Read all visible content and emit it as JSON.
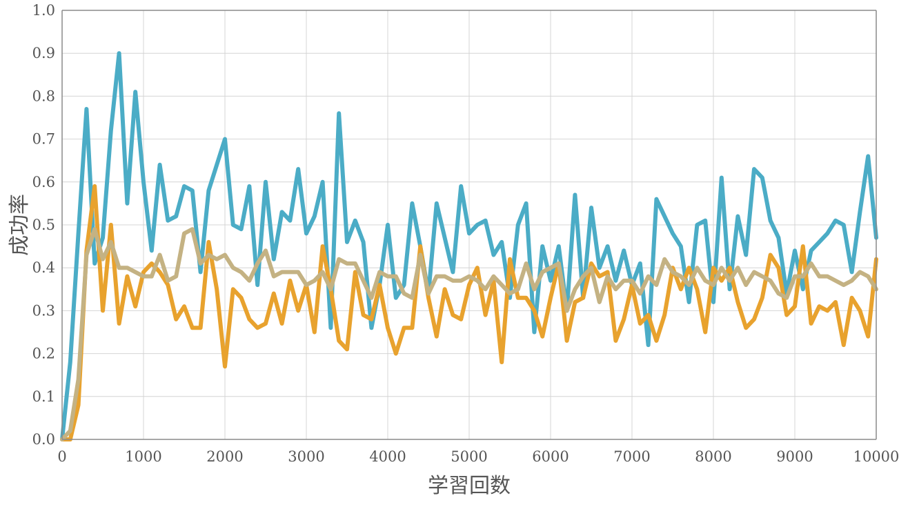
{
  "chart_data": {
    "type": "line",
    "title": "",
    "xlabel": "学習回数",
    "ylabel": "成功率",
    "xlim": [
      0,
      10000
    ],
    "ylim": [
      0,
      1.0
    ],
    "x_ticks": [
      0,
      1000,
      2000,
      3000,
      4000,
      5000,
      6000,
      7000,
      8000,
      9000,
      10000
    ],
    "y_ticks": [
      0.0,
      0.1,
      0.2,
      0.3,
      0.4,
      0.5,
      0.6,
      0.7,
      0.8,
      0.9,
      1.0
    ],
    "y_tick_labels": [
      "0.0",
      "0.1",
      "0.2",
      "0.3",
      "0.4",
      "0.5",
      "0.6",
      "0.7",
      "0.8",
      "0.9",
      "1.0"
    ],
    "grid": true,
    "legend": "none",
    "series": [
      {
        "color": "#4bacc6",
        "x": [
          0,
          100,
          200,
          300,
          400,
          500,
          600,
          700,
          800,
          900,
          1000,
          1100,
          1200,
          1300,
          1400,
          1500,
          1600,
          1700,
          1800,
          1900,
          2000,
          2100,
          2200,
          2300,
          2400,
          2500,
          2600,
          2700,
          2800,
          2900,
          3000,
          3100,
          3200,
          3300,
          3400,
          3500,
          3600,
          3700,
          3800,
          3900,
          4000,
          4100,
          4200,
          4300,
          4400,
          4500,
          4600,
          4700,
          4800,
          4900,
          5000,
          5100,
          5200,
          5300,
          5400,
          5500,
          5600,
          5700,
          5800,
          5900,
          6000,
          6100,
          6200,
          6300,
          6400,
          6500,
          6600,
          6700,
          6800,
          6900,
          7000,
          7100,
          7200,
          7300,
          7400,
          7500,
          7600,
          7700,
          7800,
          7900,
          8000,
          8100,
          8200,
          8300,
          8400,
          8500,
          8600,
          8700,
          8800,
          8900,
          9000,
          9100,
          9200,
          9300,
          9400,
          9500,
          9600,
          9700,
          9800,
          9900,
          10000
        ],
        "values": [
          0.0,
          0.18,
          0.48,
          0.77,
          0.41,
          0.47,
          0.72,
          0.9,
          0.55,
          0.81,
          0.6,
          0.44,
          0.64,
          0.51,
          0.52,
          0.59,
          0.58,
          0.39,
          0.58,
          0.64,
          0.7,
          0.5,
          0.49,
          0.59,
          0.36,
          0.6,
          0.42,
          0.53,
          0.51,
          0.63,
          0.48,
          0.52,
          0.6,
          0.26,
          0.76,
          0.46,
          0.51,
          0.46,
          0.26,
          0.36,
          0.5,
          0.33,
          0.36,
          0.55,
          0.45,
          0.34,
          0.55,
          0.47,
          0.39,
          0.59,
          0.48,
          0.5,
          0.51,
          0.43,
          0.46,
          0.33,
          0.5,
          0.55,
          0.25,
          0.45,
          0.37,
          0.45,
          0.3,
          0.57,
          0.33,
          0.54,
          0.4,
          0.45,
          0.37,
          0.44,
          0.36,
          0.41,
          0.22,
          0.56,
          0.52,
          0.48,
          0.45,
          0.32,
          0.5,
          0.51,
          0.32,
          0.61,
          0.35,
          0.52,
          0.43,
          0.63,
          0.61,
          0.51,
          0.47,
          0.34,
          0.44,
          0.35,
          0.44,
          0.46,
          0.48,
          0.51,
          0.5,
          0.39,
          0.53,
          0.66,
          0.47
        ]
      },
      {
        "color": "#e8a22e",
        "x": [
          0,
          100,
          200,
          300,
          400,
          500,
          600,
          700,
          800,
          900,
          1000,
          1100,
          1200,
          1300,
          1400,
          1500,
          1600,
          1700,
          1800,
          1900,
          2000,
          2100,
          2200,
          2300,
          2400,
          2500,
          2600,
          2700,
          2800,
          2900,
          3000,
          3100,
          3200,
          3300,
          3400,
          3500,
          3600,
          3700,
          3800,
          3900,
          4000,
          4100,
          4200,
          4300,
          4400,
          4500,
          4600,
          4700,
          4800,
          4900,
          5000,
          5100,
          5200,
          5300,
          5400,
          5500,
          5600,
          5700,
          5800,
          5900,
          6000,
          6100,
          6200,
          6300,
          6400,
          6500,
          6600,
          6700,
          6800,
          6900,
          7000,
          7100,
          7200,
          7300,
          7400,
          7500,
          7600,
          7700,
          7800,
          7900,
          8000,
          8100,
          8200,
          8300,
          8400,
          8500,
          8600,
          8700,
          8800,
          8900,
          9000,
          9100,
          9200,
          9300,
          9400,
          9500,
          9600,
          9700,
          9800,
          9900,
          10000
        ],
        "values": [
          0.0,
          0.0,
          0.08,
          0.44,
          0.59,
          0.3,
          0.5,
          0.27,
          0.38,
          0.31,
          0.39,
          0.41,
          0.39,
          0.36,
          0.28,
          0.31,
          0.26,
          0.26,
          0.46,
          0.35,
          0.17,
          0.35,
          0.33,
          0.28,
          0.26,
          0.27,
          0.34,
          0.27,
          0.37,
          0.3,
          0.36,
          0.25,
          0.45,
          0.35,
          0.23,
          0.21,
          0.39,
          0.29,
          0.28,
          0.36,
          0.26,
          0.2,
          0.26,
          0.26,
          0.45,
          0.33,
          0.24,
          0.35,
          0.29,
          0.28,
          0.36,
          0.4,
          0.29,
          0.37,
          0.18,
          0.42,
          0.33,
          0.33,
          0.3,
          0.24,
          0.33,
          0.41,
          0.23,
          0.32,
          0.33,
          0.41,
          0.38,
          0.39,
          0.23,
          0.28,
          0.36,
          0.27,
          0.29,
          0.23,
          0.29,
          0.4,
          0.35,
          0.4,
          0.35,
          0.25,
          0.4,
          0.37,
          0.4,
          0.32,
          0.26,
          0.28,
          0.33,
          0.43,
          0.4,
          0.29,
          0.31,
          0.45,
          0.27,
          0.31,
          0.3,
          0.32,
          0.22,
          0.33,
          0.3,
          0.24,
          0.42
        ]
      },
      {
        "color": "#c4b283",
        "x": [
          0,
          100,
          200,
          300,
          400,
          500,
          600,
          700,
          800,
          900,
          1000,
          1100,
          1200,
          1300,
          1400,
          1500,
          1600,
          1700,
          1800,
          1900,
          2000,
          2100,
          2200,
          2300,
          2400,
          2500,
          2600,
          2700,
          2800,
          2900,
          3000,
          3100,
          3200,
          3300,
          3400,
          3500,
          3600,
          3700,
          3800,
          3900,
          4000,
          4100,
          4200,
          4300,
          4400,
          4500,
          4600,
          4700,
          4800,
          4900,
          5000,
          5100,
          5200,
          5300,
          5400,
          5500,
          5600,
          5700,
          5800,
          5900,
          6000,
          6100,
          6200,
          6300,
          6400,
          6500,
          6600,
          6700,
          6800,
          6900,
          7000,
          7100,
          7200,
          7300,
          7400,
          7500,
          7600,
          7700,
          7800,
          7900,
          8000,
          8100,
          8200,
          8300,
          8400,
          8500,
          8600,
          8700,
          8800,
          8900,
          9000,
          9100,
          9200,
          9300,
          9400,
          9500,
          9600,
          9700,
          9800,
          9900,
          10000
        ],
        "values": [
          0.0,
          0.02,
          0.14,
          0.43,
          0.49,
          0.42,
          0.46,
          0.4,
          0.4,
          0.39,
          0.38,
          0.38,
          0.43,
          0.37,
          0.38,
          0.48,
          0.49,
          0.41,
          0.43,
          0.42,
          0.43,
          0.4,
          0.39,
          0.37,
          0.41,
          0.44,
          0.38,
          0.39,
          0.39,
          0.39,
          0.36,
          0.37,
          0.39,
          0.35,
          0.42,
          0.41,
          0.41,
          0.37,
          0.33,
          0.39,
          0.38,
          0.38,
          0.34,
          0.33,
          0.43,
          0.34,
          0.38,
          0.38,
          0.37,
          0.37,
          0.38,
          0.37,
          0.35,
          0.38,
          0.36,
          0.34,
          0.35,
          0.41,
          0.35,
          0.39,
          0.4,
          0.41,
          0.3,
          0.35,
          0.38,
          0.4,
          0.32,
          0.38,
          0.35,
          0.37,
          0.37,
          0.34,
          0.38,
          0.36,
          0.42,
          0.39,
          0.38,
          0.36,
          0.4,
          0.37,
          0.36,
          0.4,
          0.37,
          0.4,
          0.36,
          0.39,
          0.38,
          0.37,
          0.34,
          0.33,
          0.38,
          0.38,
          0.41,
          0.38,
          0.38,
          0.37,
          0.36,
          0.37,
          0.39,
          0.38,
          0.35
        ]
      }
    ]
  }
}
